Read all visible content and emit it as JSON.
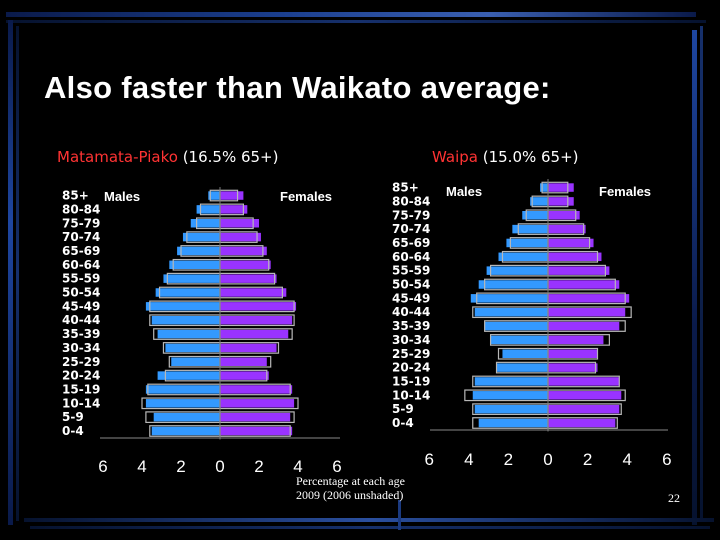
{
  "title": "Also faster than Waikato average:",
  "colors": {
    "male": "#3399ff",
    "female": "#9933ff",
    "region": "#ff3333",
    "text": "#ffffff",
    "background": "#000000"
  },
  "chart_data": [
    {
      "type": "bar",
      "orientation": "horizontal",
      "region": "Matamata-Piako",
      "subtitle_stat": "(16.5% 65+)",
      "categories": [
        "0-4",
        "5-9",
        "10-14",
        "15-19",
        "20-24",
        "25-29",
        "30-34",
        "35-39",
        "40-44",
        "45-49",
        "50-54",
        "55-59",
        "60-64",
        "65-69",
        "70-74",
        "75-79",
        "80-84",
        "85+"
      ],
      "left_label": "Males",
      "right_label": "Females",
      "xlim": [
        -6,
        6
      ],
      "xticks": [
        "6",
        "4",
        "2",
        "0",
        "2",
        "4",
        "6"
      ],
      "series": [
        {
          "name": "Males",
          "values": [
            3.5,
            3.4,
            3.8,
            3.8,
            3.2,
            2.5,
            2.8,
            3.2,
            3.5,
            3.8,
            3.3,
            2.9,
            2.6,
            2.2,
            1.9,
            1.5,
            1.2,
            0.6
          ]
        },
        {
          "name": "Females",
          "values": [
            3.7,
            3.6,
            3.8,
            3.7,
            2.5,
            2.4,
            2.9,
            3.5,
            3.7,
            3.9,
            3.4,
            2.9,
            2.6,
            2.4,
            2.1,
            2.0,
            1.4,
            1.2
          ]
        },
        {
          "name": "Males 2006",
          "values": [
            3.6,
            3.8,
            4.0,
            3.7,
            2.8,
            2.6,
            2.9,
            3.4,
            3.6,
            3.6,
            3.1,
            2.7,
            2.4,
            2.0,
            1.7,
            1.2,
            1.0,
            0.5
          ]
        },
        {
          "name": "Females 2006",
          "values": [
            3.6,
            3.8,
            4.0,
            3.6,
            2.4,
            2.6,
            3.0,
            3.7,
            3.8,
            3.8,
            3.2,
            2.8,
            2.5,
            2.2,
            1.9,
            1.7,
            1.2,
            0.9
          ]
        }
      ]
    },
    {
      "type": "bar",
      "orientation": "horizontal",
      "region": "Waipa",
      "subtitle_stat": "(15.0% 65+)",
      "categories": [
        "0-4",
        "5-9",
        "10-14",
        "15-19",
        "20-24",
        "25-29",
        "30-34",
        "35-39",
        "40-44",
        "45-49",
        "50-54",
        "55-59",
        "60-64",
        "65-69",
        "70-74",
        "75-79",
        "80-84",
        "85+"
      ],
      "left_label": "Males",
      "right_label": "Females",
      "xlim": [
        -6,
        6
      ],
      "xticks": [
        "6",
        "4",
        "2",
        "0",
        "2",
        "4",
        "6"
      ],
      "series": [
        {
          "name": "Males",
          "values": [
            3.5,
            3.7,
            3.8,
            3.7,
            2.6,
            2.3,
            2.9,
            3.2,
            3.7,
            3.9,
            3.5,
            3.1,
            2.5,
            2.1,
            1.8,
            1.3,
            0.9,
            0.4
          ]
        },
        {
          "name": "Females",
          "values": [
            3.4,
            3.6,
            3.7,
            3.6,
            2.5,
            2.5,
            2.8,
            3.6,
            3.9,
            4.1,
            3.6,
            3.1,
            2.7,
            2.3,
            1.9,
            1.6,
            1.3,
            1.3
          ]
        },
        {
          "name": "Males 2006",
          "values": [
            3.8,
            3.8,
            4.2,
            3.8,
            2.6,
            2.5,
            2.9,
            3.2,
            3.8,
            3.6,
            3.2,
            2.9,
            2.3,
            1.9,
            1.5,
            1.1,
            0.8,
            0.3
          ]
        },
        {
          "name": "Females 2006",
          "values": [
            3.5,
            3.7,
            3.9,
            3.6,
            2.4,
            2.5,
            3.1,
            3.9,
            4.2,
            3.9,
            3.4,
            2.9,
            2.5,
            2.1,
            1.8,
            1.4,
            1.0,
            1.0
          ]
        }
      ]
    }
  ],
  "note": {
    "line1": "Percentage at each age",
    "line2": "2009 (2006 unshaded)"
  },
  "page_number": "22"
}
